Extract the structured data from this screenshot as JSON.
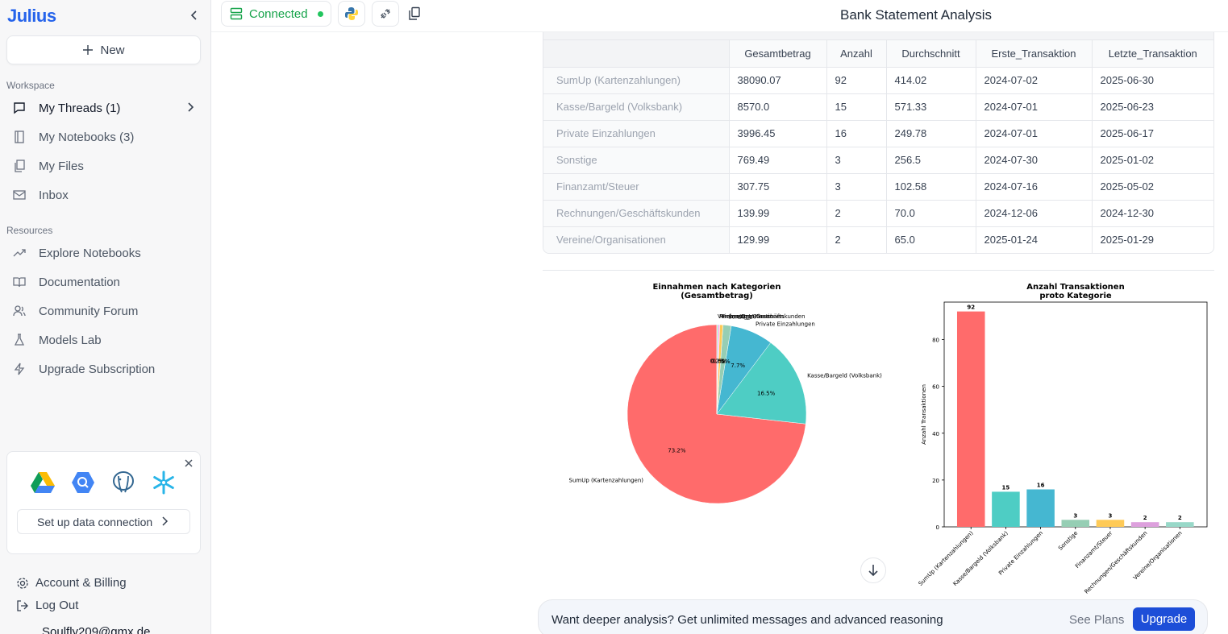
{
  "app": {
    "logo": "Julius",
    "page_title": "Bank Statement Analysis"
  },
  "sidebar": {
    "new_label": "New",
    "workspace_label": "Workspace",
    "workspace_items": [
      {
        "label": "My Threads (1)",
        "icon": "chat-icon"
      },
      {
        "label": "My Notebooks (3)",
        "icon": "notebook-icon"
      },
      {
        "label": "My Files",
        "icon": "files-icon"
      },
      {
        "label": "Inbox",
        "icon": "mail-icon"
      }
    ],
    "resources_label": "Resources",
    "resource_items": [
      {
        "label": "Explore Notebooks",
        "icon": "trend-icon"
      },
      {
        "label": "Documentation",
        "icon": "book-icon"
      },
      {
        "label": "Community Forum",
        "icon": "users-icon"
      },
      {
        "label": "Models Lab",
        "icon": "flask-icon"
      },
      {
        "label": "Upgrade Subscription",
        "icon": "bolt-icon"
      }
    ],
    "connection_card": {
      "button_label": "Set up data connection"
    },
    "footer": {
      "account_label": "Account & Billing",
      "logout_label": "Log Out",
      "email": "Soulfly209@gmx.de"
    }
  },
  "topbar": {
    "connected_label": "Connected"
  },
  "table": {
    "columns": [
      "",
      "Gesamtbetrag",
      "Anzahl",
      "Durchschnitt",
      "Erste_Transaktion",
      "Letzte_Transaktion"
    ],
    "rows": [
      [
        "SumUp (Kartenzahlungen)",
        "38090.07",
        "92",
        "414.02",
        "2024-07-02",
        "2025-06-30"
      ],
      [
        "Kasse/Bargeld (Volksbank)",
        "8570.0",
        "15",
        "571.33",
        "2024-07-01",
        "2025-06-23"
      ],
      [
        "Private Einzahlungen",
        "3996.45",
        "16",
        "249.78",
        "2024-07-01",
        "2025-06-17"
      ],
      [
        "Sonstige",
        "769.49",
        "3",
        "256.5",
        "2024-07-30",
        "2025-01-02"
      ],
      [
        "Finanzamt/Steuer",
        "307.75",
        "3",
        "102.58",
        "2024-07-16",
        "2025-05-02"
      ],
      [
        "Rechnungen/Geschäftskunden",
        "139.99",
        "2",
        "70.0",
        "2024-12-06",
        "2024-12-30"
      ],
      [
        "Vereine/Organisationen",
        "129.99",
        "2",
        "65.0",
        "2025-01-24",
        "2025-01-29"
      ]
    ]
  },
  "chart_data": [
    {
      "type": "pie",
      "title": "Einnahmen nach Kategorien\n(Gesamtbetrag)",
      "categories": [
        "SumUp (Kartenzahlungen)",
        "Kasse/Bargeld (Volksbank)",
        "Private Einzahlungen",
        "Sonstige",
        "Finanzamt/Steuer",
        "Rechnungen/Geschäftskunden",
        "Vereine/Organisationen"
      ],
      "values": [
        38090.07,
        8570.0,
        3996.45,
        769.49,
        307.75,
        139.99,
        129.99
      ],
      "pct_labels": [
        "73.2%",
        "16.5%",
        "7.7%",
        "1.5%",
        "0.6%",
        "0.3%",
        "0.2%"
      ],
      "colors": [
        "#ff6b6b",
        "#4ecdc4",
        "#45b7d1",
        "#96ceb4",
        "#feca57",
        "#ff9ff3",
        "#a8e6cf"
      ]
    },
    {
      "type": "bar",
      "title": "Anzahl Transaktionen\nproto Kategorie",
      "ylabel": "Anzahl Transaktionen",
      "categories": [
        "SumUp (Kartenzahlungen)",
        "Kasse/Bargeld (Volksbank)",
        "Private Einzahlungen",
        "Sonstige",
        "Finanzamt/Steuer",
        "Rechnungen/Geschäftskunden",
        "Vereine/Organisationen"
      ],
      "values": [
        92,
        15,
        16,
        3,
        3,
        2,
        2
      ],
      "ylim": [
        0,
        96
      ],
      "yticks": [
        0,
        20,
        40,
        60,
        80
      ],
      "colors": [
        "#ff6b6b",
        "#4ecdc4",
        "#45b7d1",
        "#96ceb4",
        "#feca57",
        "#dda0dd",
        "#98d8c8"
      ]
    }
  ],
  "upgrade": {
    "text": "Want deeper analysis? Get unlimited messages and advanced reasoning",
    "see_plans": "See Plans",
    "button": "Upgrade"
  }
}
